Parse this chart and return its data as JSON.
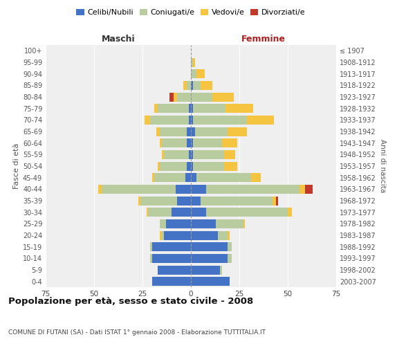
{
  "age_groups": [
    "0-4",
    "5-9",
    "10-14",
    "15-19",
    "20-24",
    "25-29",
    "30-34",
    "35-39",
    "40-44",
    "45-49",
    "50-54",
    "55-59",
    "60-64",
    "65-69",
    "70-74",
    "75-79",
    "80-84",
    "85-89",
    "90-94",
    "95-99",
    "100+"
  ],
  "birth_years": [
    "2003-2007",
    "1998-2002",
    "1993-1997",
    "1988-1992",
    "1983-1987",
    "1978-1982",
    "1973-1977",
    "1968-1972",
    "1963-1967",
    "1958-1962",
    "1953-1957",
    "1948-1952",
    "1943-1947",
    "1938-1942",
    "1933-1937",
    "1928-1932",
    "1923-1927",
    "1918-1922",
    "1913-1917",
    "1908-1912",
    "≤ 1907"
  ],
  "maschi_celibe": [
    20,
    17,
    20,
    20,
    14,
    13,
    10,
    7,
    8,
    3,
    2,
    1,
    2,
    2,
    1,
    1,
    0,
    0,
    0,
    0,
    0
  ],
  "maschi_coniugato": [
    0,
    0,
    1,
    1,
    1,
    3,
    12,
    19,
    38,
    16,
    14,
    13,
    13,
    14,
    20,
    16,
    7,
    2,
    0,
    0,
    0
  ],
  "maschi_vedovo": [
    0,
    0,
    0,
    0,
    1,
    0,
    1,
    1,
    2,
    1,
    1,
    1,
    1,
    2,
    3,
    2,
    2,
    2,
    0,
    0,
    0
  ],
  "maschi_divorziato": [
    0,
    0,
    0,
    0,
    0,
    0,
    0,
    0,
    0,
    0,
    0,
    0,
    0,
    0,
    0,
    0,
    2,
    0,
    0,
    0,
    0
  ],
  "femmine_celibe": [
    20,
    15,
    19,
    19,
    14,
    13,
    8,
    5,
    8,
    3,
    1,
    1,
    1,
    2,
    1,
    1,
    0,
    1,
    0,
    0,
    0
  ],
  "femmine_coniugata": [
    0,
    1,
    2,
    2,
    5,
    14,
    42,
    37,
    48,
    28,
    16,
    16,
    15,
    17,
    28,
    17,
    11,
    4,
    3,
    1,
    0
  ],
  "femmine_vedova": [
    0,
    0,
    0,
    0,
    1,
    1,
    2,
    2,
    3,
    5,
    7,
    6,
    8,
    10,
    14,
    14,
    11,
    6,
    4,
    1,
    0
  ],
  "femmine_divorziata": [
    0,
    0,
    0,
    0,
    0,
    0,
    0,
    1,
    4,
    0,
    0,
    0,
    0,
    0,
    0,
    0,
    0,
    0,
    0,
    0,
    0
  ],
  "color_celibe": "#4472c4",
  "color_coniugato": "#b8cca0",
  "color_vedovo": "#f5c542",
  "color_divorziato": "#c0392b",
  "title": "Popolazione per età, sesso e stato civile - 2008",
  "subtitle": "COMUNE DI FUTANI (SA) - Dati ISTAT 1° gennaio 2008 - Elaborazione TUTTITALIA.IT",
  "xlabel_maschi": "Maschi",
  "xlabel_femmine": "Femmine",
  "ylabel_left": "Fasce di età",
  "ylabel_right": "Anni di nascita",
  "xlim": 75,
  "bg_color": "#ffffff",
  "plot_bg": "#efefef"
}
